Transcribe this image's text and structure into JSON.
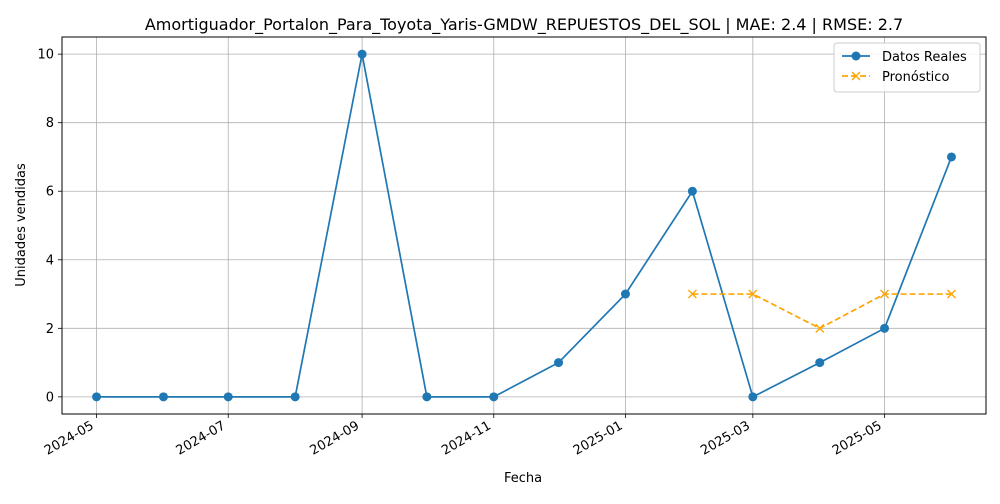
{
  "chart_data": {
    "type": "line",
    "title": "Amortiguador_Portalon_Para_Toyota_Yaris-GMDW_REPUESTOS_DEL_SOL | MAE: 2.4 | RMSE: 2.7",
    "xlabel": "Fecha",
    "ylabel": "Unidades vendidas",
    "x_ticks": [
      "2024-05",
      "2024-07",
      "2024-09",
      "2024-11",
      "2025-01",
      "2025-03",
      "2025-05"
    ],
    "y_ticks": [
      "0",
      "2",
      "4",
      "6",
      "8",
      "10"
    ],
    "ylim": [
      -0.5,
      10.5
    ],
    "xlim": [
      "2024-04-15",
      "2025-06-17"
    ],
    "grid": true,
    "legend_position": "top-right",
    "series": [
      {
        "name": "Datos Reales",
        "color": "#1f77b4",
        "line_style": "solid",
        "marker": "circle",
        "x": [
          "2024-05-01",
          "2024-06-01",
          "2024-07-01",
          "2024-08-01",
          "2024-09-01",
          "2024-10-01",
          "2024-11-01",
          "2024-12-01",
          "2025-01-01",
          "2025-02-01",
          "2025-03-01",
          "2025-04-01",
          "2025-05-01",
          "2025-06-01"
        ],
        "values": [
          0,
          0,
          0,
          0,
          10,
          0,
          0,
          1,
          3,
          6,
          0,
          1,
          2,
          7
        ]
      },
      {
        "name": "Pronóstico",
        "color": "#ffa500",
        "line_style": "dashed",
        "marker": "x",
        "x": [
          "2025-02-01",
          "2025-03-01",
          "2025-04-01",
          "2025-05-01",
          "2025-06-01"
        ],
        "values": [
          3,
          3,
          2,
          3,
          3
        ]
      }
    ]
  }
}
